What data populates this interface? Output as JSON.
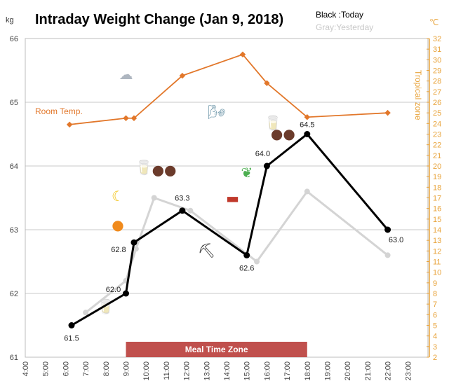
{
  "chart_data": {
    "type": "line",
    "title": "Intraday Weight Change (Jan 9, 2018)",
    "legend": {
      "today": "Black :Today",
      "yesterday": "Gray:Yesterday",
      "placement": "top-right"
    },
    "y_unit": "kg",
    "y2_unit": "℃",
    "y2_label": "Tropical zone",
    "ylim": [
      61,
      66
    ],
    "y_ticks": [
      "61",
      "62",
      "63",
      "64",
      "65",
      "66"
    ],
    "y2lim": [
      2,
      32
    ],
    "y2_ticks": [
      "2",
      "3",
      "4",
      "5",
      "6",
      "7",
      "8",
      "9",
      "10",
      "11",
      "12",
      "13",
      "14",
      "15",
      "16",
      "17",
      "18",
      "19",
      "20",
      "21",
      "22",
      "23",
      "24",
      "25",
      "26",
      "27",
      "28",
      "29",
      "30",
      "31",
      "32"
    ],
    "xlim": [
      4,
      24
    ],
    "x_ticks": [
      "4:00",
      "5:00",
      "6:00",
      "7:00",
      "8:00",
      "9:00",
      "10:00",
      "11:00",
      "12:00",
      "13:00",
      "14:00",
      "15:00",
      "16:00",
      "17:00",
      "18:00",
      "19:00",
      "20:00",
      "21:00",
      "22:00",
      "23:00"
    ],
    "grid": true,
    "series": [
      {
        "name": "Today",
        "color": "#000000",
        "points": [
          {
            "x": 6.3,
            "y": 61.5,
            "label": "61.5"
          },
          {
            "x": 9.0,
            "y": 62.0,
            "label": "62.0"
          },
          {
            "x": 9.4,
            "y": 62.8,
            "label": "62.8"
          },
          {
            "x": 11.8,
            "y": 63.3,
            "label": "63.3"
          },
          {
            "x": 15.0,
            "y": 62.6,
            "label": "62.6"
          },
          {
            "x": 16.0,
            "y": 64.0,
            "label": "64.0"
          },
          {
            "x": 18.0,
            "y": 64.5,
            "label": "64.5"
          },
          {
            "x": 22.0,
            "y": 63.0,
            "label": "63.0"
          }
        ]
      },
      {
        "name": "Yesterday",
        "color": "#d4d4d4",
        "points": [
          {
            "x": 7.0,
            "y": 61.7
          },
          {
            "x": 9.0,
            "y": 62.2
          },
          {
            "x": 9.5,
            "y": 62.7
          },
          {
            "x": 10.4,
            "y": 63.5
          },
          {
            "x": 12.2,
            "y": 63.3
          },
          {
            "x": 15.5,
            "y": 62.5
          },
          {
            "x": 18.0,
            "y": 63.6
          },
          {
            "x": 22.0,
            "y": 62.6
          }
        ]
      },
      {
        "name": "Room Temp.",
        "color": "#e2772a",
        "axis": "right",
        "points": [
          {
            "x": 6.2,
            "y": 23.9
          },
          {
            "x": 9.0,
            "y": 24.5
          },
          {
            "x": 9.4,
            "y": 24.5
          },
          {
            "x": 11.8,
            "y": 28.5
          },
          {
            "x": 14.8,
            "y": 30.5
          },
          {
            "x": 16.0,
            "y": 27.8
          },
          {
            "x": 18.0,
            "y": 24.6
          },
          {
            "x": 22.0,
            "y": 25.0
          }
        ]
      }
    ],
    "meal_zone": {
      "label": "Meal Time Zone",
      "x_range": [
        9,
        18
      ],
      "color": "#c0504d"
    },
    "icons": [
      {
        "name": "cloud",
        "glyph": "☁",
        "x": 9.0,
        "y": 65.36,
        "size": 40,
        "color": "#aeb6c0"
      },
      {
        "name": "wind",
        "glyph": "🌬",
        "x": 13.5,
        "y": 64.77,
        "size": 28,
        "color": "#7a9fb0"
      },
      {
        "name": "water-glass",
        "glyph": "🥛",
        "x": 8.0,
        "y": 61.72,
        "size": 24,
        "color": "#9dc3e6"
      },
      {
        "name": "water-glass",
        "glyph": "🥛",
        "x": 9.9,
        "y": 63.9,
        "size": 24,
        "color": "#9dc3e6"
      },
      {
        "name": "water-glass",
        "glyph": "🥛",
        "x": 16.3,
        "y": 64.6,
        "size": 24,
        "color": "#9dc3e6"
      },
      {
        "name": "orange",
        "glyph": "●",
        "x": 8.6,
        "y": 63.0,
        "size": 22,
        "color": "#f08a1c"
      },
      {
        "name": "banana",
        "glyph": "☾",
        "x": 8.6,
        "y": 63.45,
        "size": 22,
        "color": "#f3c316"
      },
      {
        "name": "chestnuts",
        "glyph": "●●",
        "x": 10.9,
        "y": 63.86,
        "size": 12,
        "color": "#6b3b2b"
      },
      {
        "name": "chestnuts",
        "glyph": "●●",
        "x": 16.8,
        "y": 64.43,
        "size": 12,
        "color": "#6b3b2b"
      },
      {
        "name": "steak",
        "glyph": "▬",
        "x": 14.3,
        "y": 63.42,
        "size": 22,
        "color": "#c0392b"
      },
      {
        "name": "lettuce",
        "glyph": "❦",
        "x": 15.0,
        "y": 63.82,
        "size": 26,
        "color": "#4caf50"
      },
      {
        "name": "gardening",
        "glyph": "⛏",
        "x": 13.0,
        "y": 62.6,
        "size": 24,
        "color": "#333333"
      }
    ]
  }
}
